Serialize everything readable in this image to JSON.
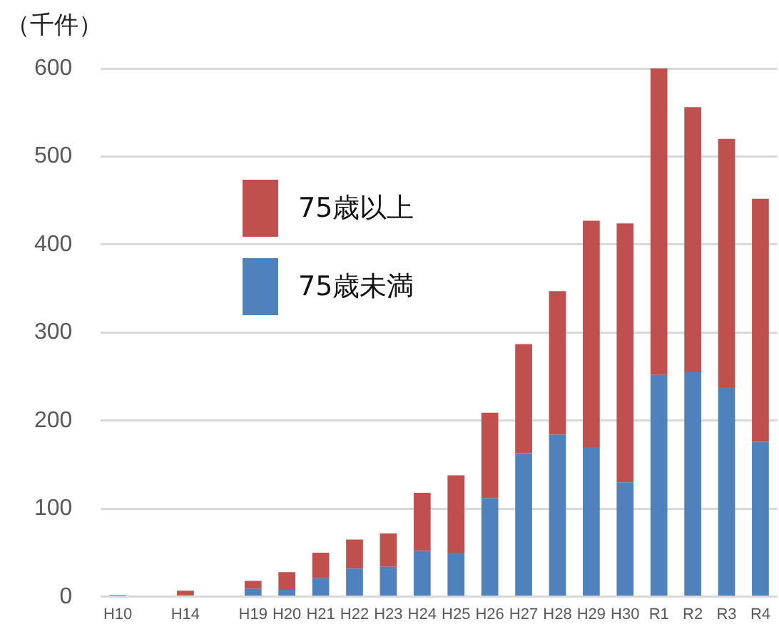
{
  "chart_data": {
    "type": "bar",
    "ylabel": "（千件）",
    "stacked": true,
    "categories": [
      "H10",
      null,
      "H14",
      null,
      "H19",
      "H20",
      "H21",
      "H22",
      "H23",
      "H24",
      "H25",
      "H26",
      "H27",
      "H28",
      "H29",
      "H30",
      "R1",
      "R2",
      "R3",
      "R4"
    ],
    "series": [
      {
        "name": "75歳未満",
        "color": "#4f81bd",
        "values": [
          2,
          null,
          2,
          null,
          9,
          8,
          21,
          32,
          34,
          52,
          50,
          112,
          163,
          184,
          170,
          130,
          252,
          255,
          238,
          176
        ]
      },
      {
        "name": "75歳以上",
        "color": "#c0504d",
        "values": [
          0,
          null,
          5,
          null,
          9,
          20,
          29,
          33,
          38,
          66,
          88,
          97,
          124,
          163,
          257,
          294,
          349,
          301,
          282,
          276
        ]
      }
    ],
    "ylim": [
      0,
      600
    ],
    "yticks": [
      0,
      100,
      200,
      300,
      400,
      500,
      600
    ],
    "grid": "y",
    "legend": "top left"
  }
}
